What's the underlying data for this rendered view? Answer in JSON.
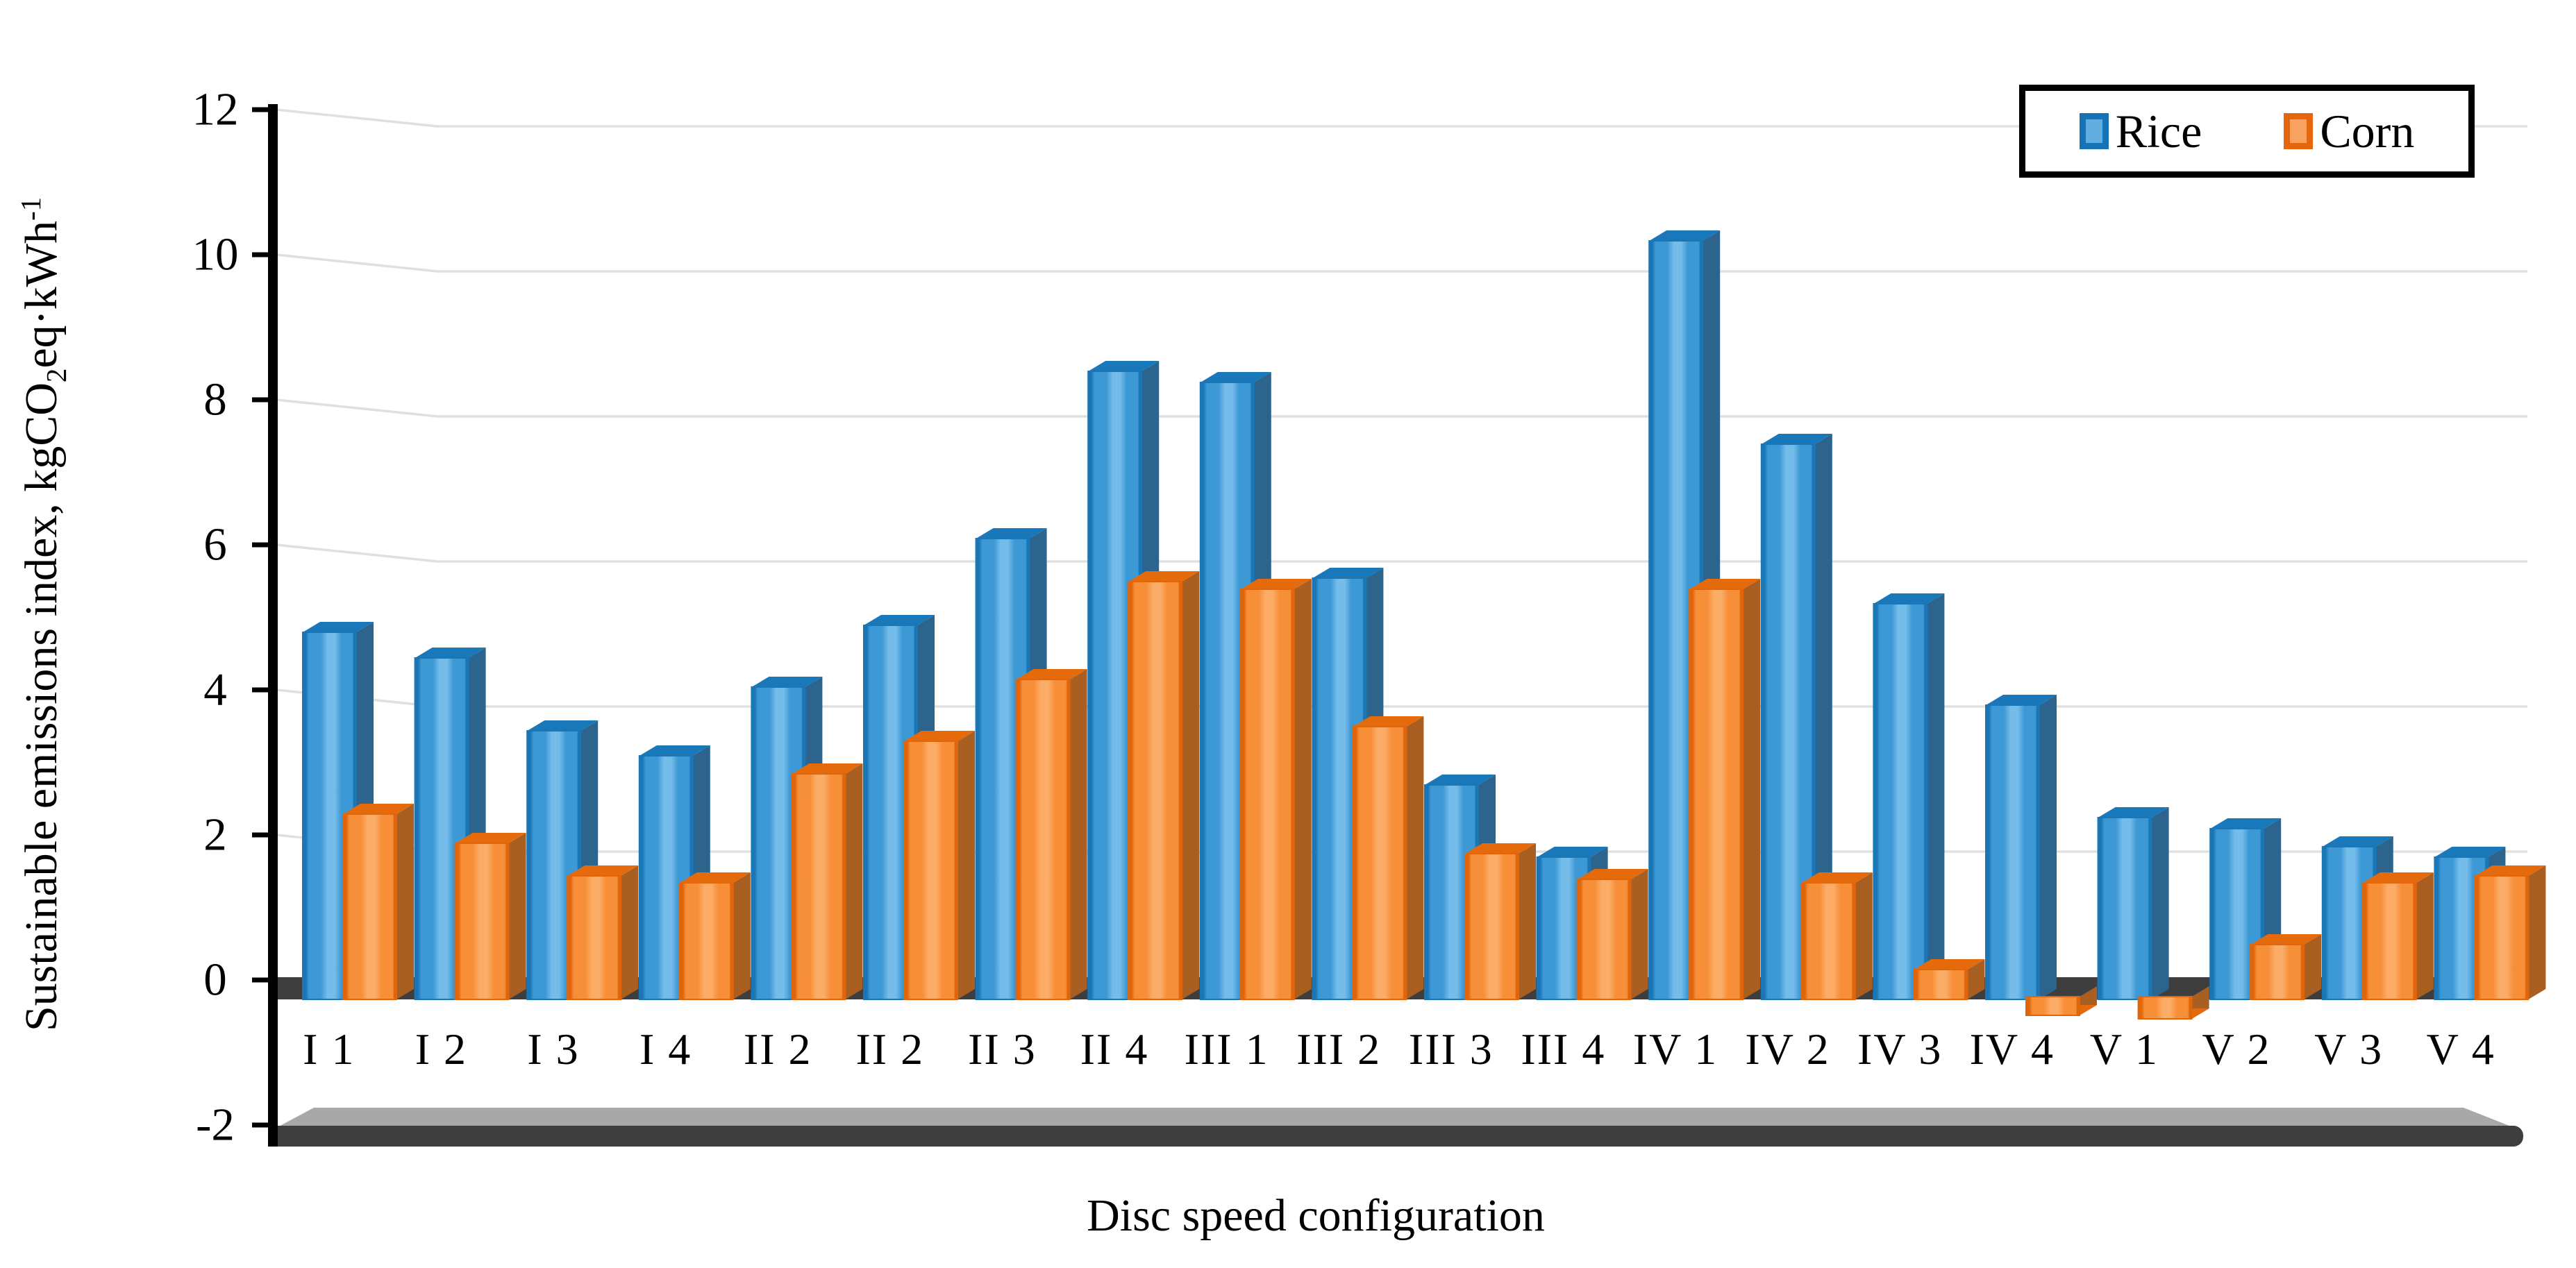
{
  "chart_data": {
    "type": "bar",
    "title": "",
    "categories": [
      "I 1",
      "I 2",
      "I 3",
      "I 4",
      "II 2",
      "II 2",
      "II 3",
      "II 4",
      "III 1",
      "III 2",
      "III 3",
      "III 4",
      "IV 1",
      "IV 2",
      "IV 3",
      "IV 4",
      "V 1",
      "V 2",
      "V 3",
      "V 4"
    ],
    "series": [
      {
        "name": "Rice",
        "values": [
          5.0,
          4.65,
          3.65,
          3.3,
          4.25,
          5.1,
          6.3,
          8.6,
          8.45,
          5.75,
          2.9,
          1.9,
          10.4,
          7.6,
          5.4,
          4.0,
          2.45,
          2.3,
          2.05,
          1.9
        ]
      },
      {
        "name": "Corn",
        "values": [
          2.5,
          2.1,
          1.65,
          1.55,
          3.05,
          3.5,
          4.35,
          5.7,
          5.6,
          3.7,
          1.95,
          1.6,
          5.6,
          1.55,
          0.35,
          -0.2,
          -0.25,
          0.7,
          1.55,
          1.65
        ]
      }
    ],
    "xlabel": "Disc speed configuration",
    "ylabel": "Sustainable emissions index, kgCO2eq·kWh-1",
    "ylim": [
      -2,
      12
    ],
    "ytick_step": 2,
    "grid": "horizontal",
    "legend_position": "top-right",
    "style": "3d-beveled-columns"
  },
  "y_axis": {
    "ticks": [
      "12",
      "10",
      "8",
      "6",
      "4",
      "2",
      "0",
      "-2"
    ],
    "title": {
      "pre": "Sustainable emissions index, kgCO",
      "sub": "2",
      "mid": "eq·kWh",
      "sup": "-1"
    }
  },
  "x_axis": {
    "title": "Disc speed configuration"
  },
  "legend": {
    "items": [
      {
        "label": "Rice"
      },
      {
        "label": "Corn"
      }
    ]
  },
  "colors": {
    "rice_face": "#3D99D6",
    "rice_face_highlight": "#74BCE9",
    "rice_edge": "#1B76B6",
    "rice_side": "#2C648E",
    "rice_cap": "#1878BA",
    "corn_face": "#F78F39",
    "corn_face_highlight": "#FBAC67",
    "corn_edge": "#E0650B",
    "corn_side": "#A85F21",
    "corn_cap": "#E56A0C",
    "gridline": "#E0E0E0",
    "axis": "#000000",
    "zero_bar": "#3E3E3E",
    "floor_top": "#A8A8A8",
    "floor_front": "#3E3E3E",
    "text": "#000000",
    "background": "#FFFFFF"
  }
}
